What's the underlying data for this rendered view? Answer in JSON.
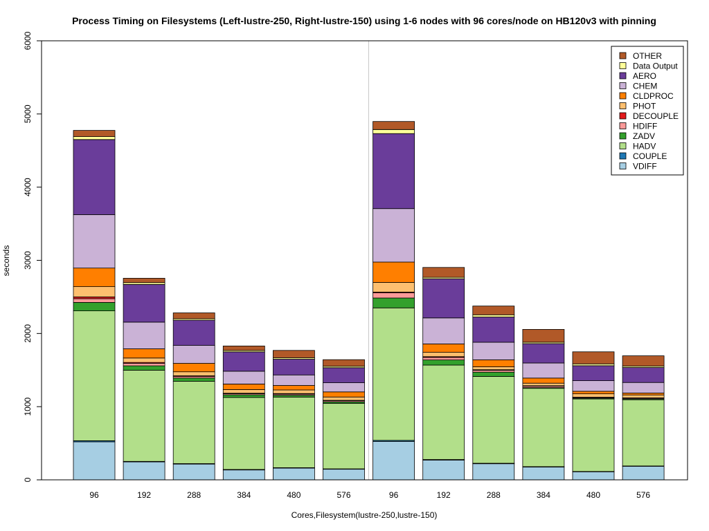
{
  "chart_data": {
    "type": "bar",
    "stacked": true,
    "title": "Process Timing on Filesystems (Left-lustre-250, Right-lustre-150) using 1-6 nodes with 96 cores/node on HB120v3 with pinning",
    "xlabel": "Cores,Filesystem(lustre-250,lustre-150)",
    "ylabel": "seconds",
    "ylim": [
      0,
      6000
    ],
    "yticks": [
      "0",
      "1000",
      "2000",
      "3000",
      "4000",
      "5000",
      "6000"
    ],
    "categories": [
      "96",
      "192",
      "288",
      "384",
      "480",
      "576",
      "96",
      "192",
      "288",
      "384",
      "480",
      "576"
    ],
    "group_divider_after": 6,
    "grid": false,
    "legend_position": "top-right",
    "series": [
      {
        "name": "VDIFF",
        "color": "#a6cee3",
        "values": [
          520,
          245,
          215,
          135,
          160,
          145,
          525,
          270,
          220,
          175,
          110,
          185
        ]
      },
      {
        "name": "COUPLE",
        "color": "#1f78b4",
        "values": [
          15,
          8,
          7,
          6,
          6,
          5,
          15,
          8,
          7,
          5,
          5,
          5
        ]
      },
      {
        "name": "HADV",
        "color": "#b2df8a",
        "values": [
          1775,
          1245,
          1125,
          985,
          965,
          895,
          1810,
          1290,
          1185,
          1070,
          990,
          905
        ]
      },
      {
        "name": "ZADV",
        "color": "#33a02c",
        "values": [
          115,
          60,
          45,
          35,
          25,
          20,
          135,
          70,
          60,
          10,
          10,
          10
        ]
      },
      {
        "name": "HDIFF",
        "color": "#fb9a99",
        "values": [
          50,
          35,
          20,
          15,
          15,
          15,
          70,
          35,
          25,
          20,
          10,
          10
        ]
      },
      {
        "name": "DECOUPLE",
        "color": "#e31a1c",
        "values": [
          25,
          12,
          10,
          8,
          8,
          7,
          12,
          10,
          8,
          6,
          5,
          5
        ]
      },
      {
        "name": "PHOT",
        "color": "#fdbf6f",
        "values": [
          140,
          60,
          55,
          50,
          50,
          45,
          130,
          60,
          40,
          35,
          45,
          40
        ]
      },
      {
        "name": "CLDPROC",
        "color": "#ff7f00",
        "values": [
          255,
          125,
          115,
          75,
          60,
          70,
          280,
          115,
          95,
          70,
          35,
          25
        ]
      },
      {
        "name": "CHEM",
        "color": "#cab2d6",
        "values": [
          730,
          365,
          245,
          175,
          145,
          125,
          730,
          355,
          240,
          205,
          145,
          145
        ]
      },
      {
        "name": "AERO",
        "color": "#6a3d9a",
        "values": [
          1025,
          515,
          345,
          265,
          215,
          205,
          1025,
          535,
          345,
          265,
          205,
          205
        ]
      },
      {
        "name": "Data Output",
        "color": "#ffff99",
        "values": [
          40,
          25,
          20,
          20,
          20,
          20,
          55,
          20,
          30,
          20,
          25,
          20
        ]
      },
      {
        "name": "OTHER",
        "color": "#b15928",
        "values": [
          85,
          60,
          80,
          60,
          100,
          90,
          110,
          135,
          120,
          175,
          165,
          140
        ]
      }
    ]
  }
}
